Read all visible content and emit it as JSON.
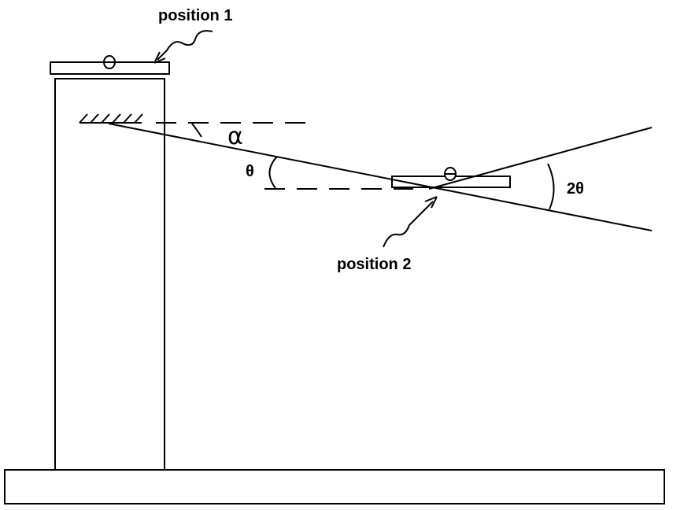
{
  "labels": {
    "position_1": "position 1",
    "position_2": "position 2",
    "alpha": "α",
    "theta": "θ",
    "two_theta": "2θ"
  },
  "colors": {
    "stroke": "#000000",
    "background": "#ffffff"
  }
}
